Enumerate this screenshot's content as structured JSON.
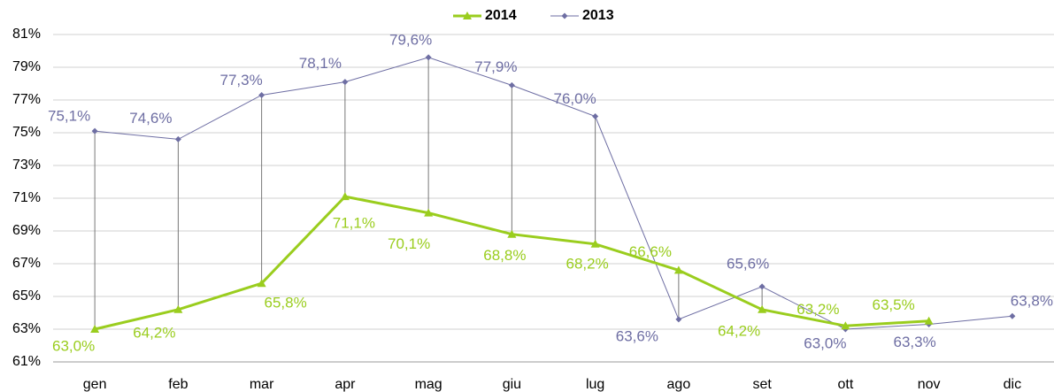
{
  "chart_data": {
    "type": "line",
    "categories": [
      "gen",
      "feb",
      "mar",
      "apr",
      "mag",
      "giu",
      "lug",
      "ago",
      "set",
      "ott",
      "nov",
      "dic"
    ],
    "series": [
      {
        "name": "2014",
        "color": "#9acd1e",
        "values": [
          63.0,
          64.2,
          65.8,
          71.1,
          70.1,
          68.8,
          68.2,
          66.6,
          64.2,
          63.2,
          63.5,
          null
        ],
        "value_labels": [
          "63,0%",
          "64,2%",
          "65,8%",
          "71,1%",
          "70,1%",
          "68,8%",
          "68,2%",
          "66,6%",
          "64,2%",
          "63,2%",
          "63,5%",
          null
        ]
      },
      {
        "name": "2013",
        "color": "#6e6ea3",
        "values": [
          75.1,
          74.6,
          77.3,
          78.1,
          79.6,
          77.9,
          76.0,
          63.6,
          65.6,
          63.0,
          63.3,
          63.8
        ],
        "value_labels": [
          "75,1%",
          "74,6%",
          "77,3%",
          "78,1%",
          "79,6%",
          "77,9%",
          "76,0%",
          "63,6%",
          "65,6%",
          "63,0%",
          "63,3%",
          "63,8%"
        ]
      }
    ],
    "ylim": [
      61,
      81
    ],
    "yticks": [
      {
        "value": 61,
        "label": "61%"
      },
      {
        "value": 63,
        "label": "63%"
      },
      {
        "value": 65,
        "label": "65%"
      },
      {
        "value": 67,
        "label": "67%"
      },
      {
        "value": 69,
        "label": "69%"
      },
      {
        "value": 71,
        "label": "71%"
      },
      {
        "value": 73,
        "label": "73%"
      },
      {
        "value": 75,
        "label": "75%"
      },
      {
        "value": 77,
        "label": "77%"
      },
      {
        "value": 79,
        "label": "79%"
      },
      {
        "value": 81,
        "label": "81%"
      }
    ],
    "grid": true,
    "drop_lines": true,
    "legend": "top"
  }
}
